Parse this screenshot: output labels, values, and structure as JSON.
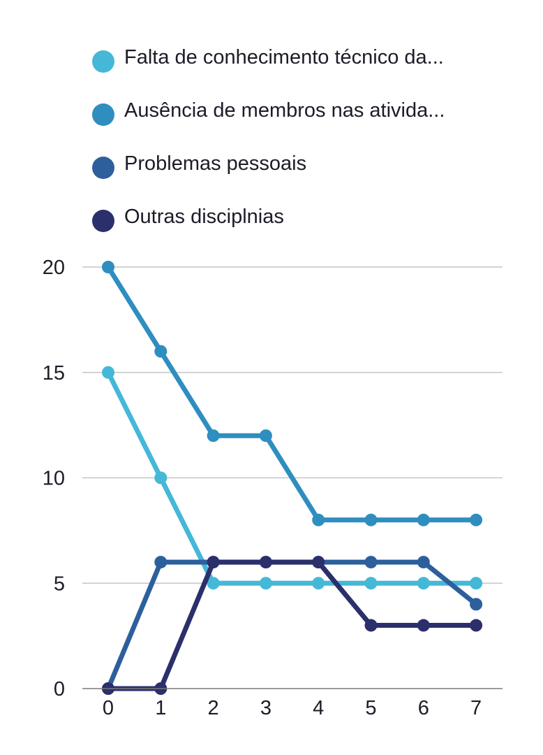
{
  "chart_data": {
    "type": "line",
    "title": "",
    "xlabel": "",
    "ylabel": "",
    "x": [
      0,
      1,
      2,
      3,
      4,
      5,
      6,
      7
    ],
    "xticks": [
      "0",
      "1",
      "2",
      "3",
      "4",
      "5",
      "6",
      "7"
    ],
    "yticks": [
      "0",
      "5",
      "10",
      "15",
      "20"
    ],
    "ylim": [
      0,
      20
    ],
    "grid": true,
    "legend_position": "top",
    "series": [
      {
        "name": "Falta de conhecimento técnico da...",
        "color": "#45b8d8",
        "values": [
          15,
          10,
          5,
          5,
          5,
          5,
          5,
          5
        ]
      },
      {
        "name": "Ausência de membros nas ativida...",
        "color": "#2e8ebf",
        "values": [
          20,
          16,
          12,
          12,
          8,
          8,
          8,
          8
        ]
      },
      {
        "name": "Problemas pessoais",
        "color": "#2d5f9c",
        "values": [
          0,
          6,
          6,
          6,
          6,
          6,
          6,
          4
        ]
      },
      {
        "name": "Outras disciplnias",
        "color": "#2b2f6b",
        "values": [
          0,
          0,
          6,
          6,
          6,
          3,
          3,
          3
        ]
      }
    ]
  }
}
